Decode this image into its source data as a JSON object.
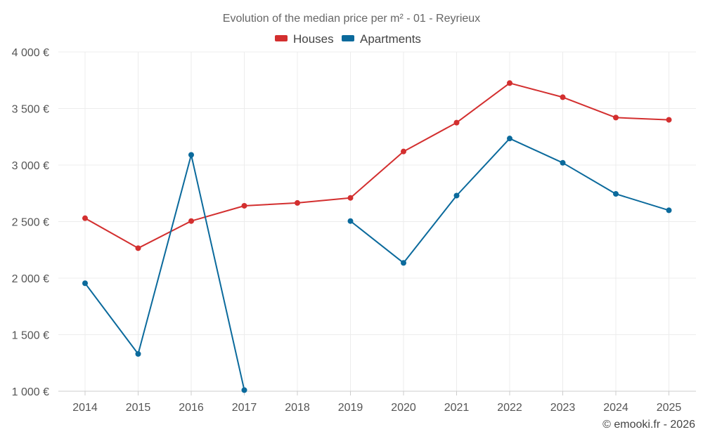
{
  "chart_data": {
    "type": "line",
    "title": "Evolution of the median price per m² - 01 - Reyrieux",
    "categories": [
      "2014",
      "2015",
      "2016",
      "2017",
      "2018",
      "2019",
      "2020",
      "2021",
      "2022",
      "2023",
      "2024",
      "2025"
    ],
    "series": [
      {
        "name": "Houses",
        "color": "#d32f2f",
        "values": [
          2530,
          2265,
          2505,
          2640,
          2665,
          2710,
          3120,
          3375,
          3725,
          3600,
          3420,
          3400
        ]
      },
      {
        "name": "Apartments",
        "color": "#0b6a9c",
        "values": [
          1955,
          1330,
          3090,
          1010,
          null,
          2505,
          2135,
          2730,
          3235,
          3020,
          2745,
          2600
        ]
      }
    ],
    "ylim": [
      1000,
      4000
    ],
    "y_ticks": [
      1000,
      1500,
      2000,
      2500,
      3000,
      3500,
      4000
    ],
    "y_tick_labels": [
      "1 000 €",
      "1 500 €",
      "2 000 €",
      "2 500 €",
      "3 000 €",
      "3 500 €",
      "4 000 €"
    ],
    "xlabel": "",
    "ylabel": "",
    "legend": "top-center",
    "grid": true
  },
  "credit": "© emooki.fr - 2026"
}
